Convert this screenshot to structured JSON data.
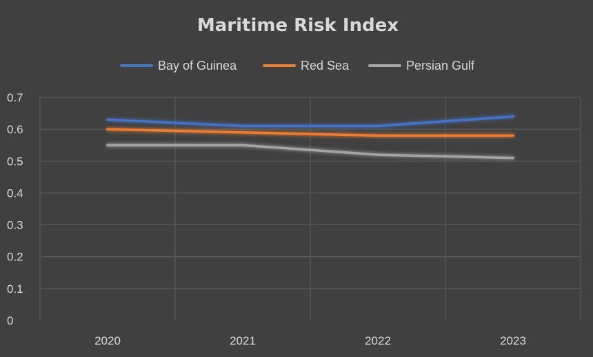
{
  "chart_data": {
    "type": "line",
    "title": "Maritime Risk Index",
    "xlabel": "",
    "ylabel": "",
    "categories": [
      "2020",
      "2021",
      "2022",
      "2023"
    ],
    "ylim": [
      0,
      0.7
    ],
    "yticks": [
      "0",
      "0.1",
      "0.2",
      "0.3",
      "0.4",
      "0.5",
      "0.6",
      "0.7"
    ],
    "grid": true,
    "legend_position": "top",
    "series": [
      {
        "name": "Bay of Guinea",
        "color": "#4472c4",
        "values": [
          0.63,
          0.61,
          0.61,
          0.64
        ]
      },
      {
        "name": "Red Sea",
        "color": "#ed7d31",
        "values": [
          0.6,
          0.59,
          0.58,
          0.58
        ]
      },
      {
        "name": "Persian Gulf",
        "color": "#a5a5a5",
        "values": [
          0.55,
          0.55,
          0.52,
          0.51
        ]
      }
    ]
  }
}
